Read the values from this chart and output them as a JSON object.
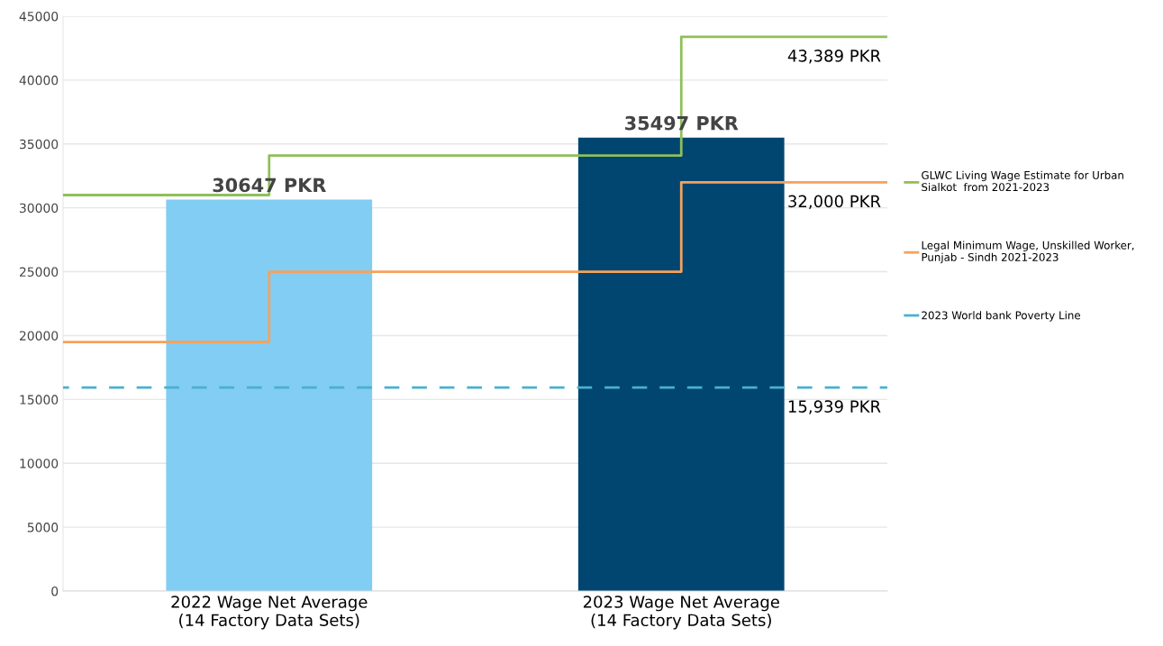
{
  "chart_data": {
    "type": "bar",
    "categories": [
      null,
      "2022 Wage Net Average\n(14 Factory Data Sets)",
      null,
      "2023 Wage Net Average\n(14 Factory Data Sets)",
      null
    ],
    "values": [
      null,
      30647,
      null,
      35497,
      null
    ],
    "colors": [
      "#82cdf3",
      "#82cdf3",
      "#004671",
      "#004671",
      "#004671"
    ],
    "value_labels": [
      null,
      "30647 PKR",
      null,
      "35497 PKR",
      null
    ],
    "series": [
      {
        "name": "GLWC Living Wage Estimate for Urban\nSialkot  from 2021-2023",
        "type": "step",
        "color": "#8fbf5a",
        "values": [
          31000,
          34100,
          34100,
          43389,
          43389
        ]
      },
      {
        "name": "Legal Minimum Wage, Unskilled Worker,\nPunjab - Sindh 2021-2023",
        "type": "step",
        "color": "#f5a25d",
        "values": [
          19500,
          25000,
          25000,
          32000,
          32000
        ]
      },
      {
        "name": "2023 World bank Poverty Line",
        "type": "line",
        "line_style": "dashed",
        "color": "#4ab0d0",
        "values": [
          15939,
          15939,
          15939,
          15939,
          15939
        ]
      }
    ],
    "annotations": [
      "43,389 PKR",
      "32,000 PKR",
      "15,939 PKR"
    ],
    "ylim": [
      0,
      45000
    ],
    "yticks": [
      0,
      5000,
      10000,
      15000,
      20000,
      25000,
      30000,
      35000,
      40000,
      45000
    ],
    "grid": "y",
    "legend": "right"
  }
}
